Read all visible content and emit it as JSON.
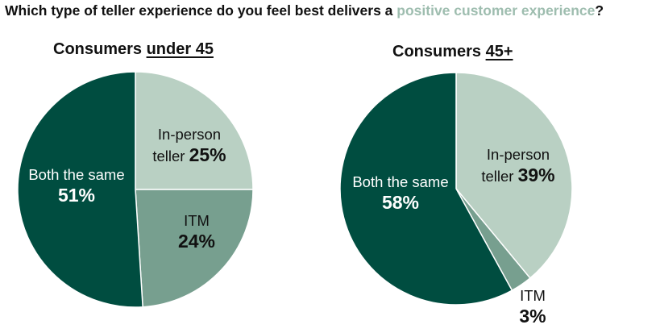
{
  "question": {
    "prefix": "Which type of teller experience do you feel best delivers a ",
    "highlight": "positive customer experience",
    "suffix": "?"
  },
  "colors": {
    "in_person": "#b9d0c3",
    "itm": "#779f8f",
    "both_same": "#004d40",
    "highlight": "#9ebdaf"
  },
  "chart_data": [
    {
      "type": "pie",
      "title_prefix": "Consumers ",
      "title_underlined": "under 45",
      "slices": [
        {
          "label_line1": "In-person",
          "label_line2": "teller",
          "value": 25,
          "value_label": "25%"
        },
        {
          "label_line1": "ITM",
          "label_line2": "",
          "value": 24,
          "value_label": "24%"
        },
        {
          "label_line1": "Both the same",
          "label_line2": "",
          "value": 51,
          "value_label": "51%"
        }
      ]
    },
    {
      "type": "pie",
      "title_prefix": "Consumers ",
      "title_underlined": "45+",
      "slices": [
        {
          "label_line1": "In-person",
          "label_line2": "teller",
          "value": 39,
          "value_label": "39%"
        },
        {
          "label_line1": "ITM",
          "label_line2": "",
          "value": 3,
          "value_label": "3%"
        },
        {
          "label_line1": "Both the same",
          "label_line2": "",
          "value": 58,
          "value_label": "58%"
        }
      ]
    }
  ]
}
